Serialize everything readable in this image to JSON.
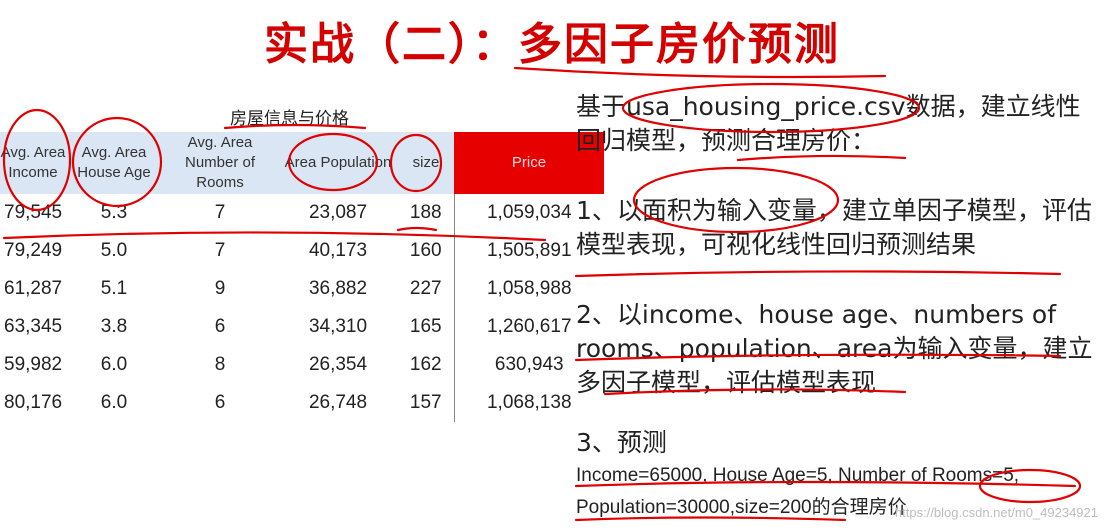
{
  "title": "实战（二）：多因子房价预测",
  "table": {
    "caption": "房屋信息与价格",
    "headers": [
      "Avg. Area Income",
      "Avg. Area House Age",
      "Avg. Area Number of Rooms",
      "Area Population",
      "size",
      "Price"
    ],
    "rows": [
      [
        "79,545",
        "5.3",
        "7",
        "23,087",
        "188",
        "1,059,034"
      ],
      [
        "79,249",
        "5.0",
        "7",
        "40,173",
        "160",
        "1,505,891"
      ],
      [
        "61,287",
        "5.1",
        "9",
        "36,882",
        "227",
        "1,058,988"
      ],
      [
        "63,345",
        "3.8",
        "6",
        "34,310",
        "165",
        "1,260,617"
      ],
      [
        "59,982",
        "6.0",
        "8",
        "26,354",
        "162",
        "630,943"
      ],
      [
        "80,176",
        "6.0",
        "6",
        "26,748",
        "157",
        "1,068,138"
      ]
    ]
  },
  "right": {
    "para1": "基于usa_housing_price.csv数据，建立线性回归模型，预测合理房价：",
    "para2": "1、以面积为输入变量，建立单因子模型，评估模型表现，可视化线性回归预测结果",
    "para3": "2、以income、house age、numbers of rooms、population、area为输入变量，建立多因子模型，评估模型表现",
    "para4_heading": "3、预测",
    "para4_line1": "Income=65000, House Age=5, Number of Rooms=5,",
    "para4_line2": "Population=30000,size=200的合理房价"
  },
  "watermark": "https://blog.csdn.net/m0_49234921",
  "colors": {
    "title": "#d40000",
    "header_bg": "#dbe6f4",
    "price_bg": "#e60000",
    "ink": "#e00000"
  }
}
